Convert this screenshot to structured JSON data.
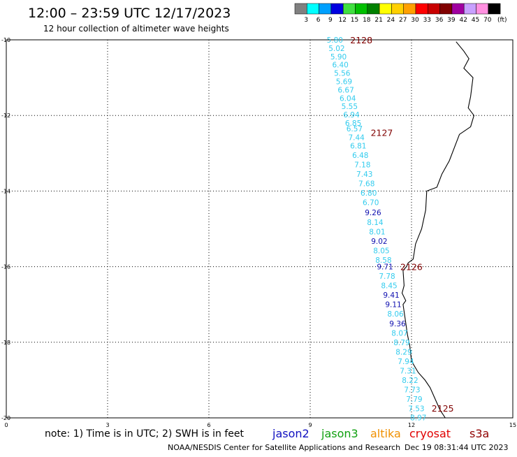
{
  "header": {
    "title": "12:00 – 23:59 UTC 12/17/2023",
    "subtitle": "12 hour collection of altimeter wave heights"
  },
  "colorbar": {
    "unit": "(ft)",
    "bins": [
      {
        "color": "#808080",
        "label": "3"
      },
      {
        "color": "#00ffff",
        "label": "6"
      },
      {
        "color": "#00a0ff",
        "label": "9"
      },
      {
        "color": "#0000e0",
        "label": "12"
      },
      {
        "color": "#40e040",
        "label": "15"
      },
      {
        "color": "#00c000",
        "label": "18"
      },
      {
        "color": "#008000",
        "label": "21"
      },
      {
        "color": "#ffff00",
        "label": "24"
      },
      {
        "color": "#ffd000",
        "label": "27"
      },
      {
        "color": "#ffa000",
        "label": "30"
      },
      {
        "color": "#ff0000",
        "label": "33"
      },
      {
        "color": "#c80000",
        "label": "36"
      },
      {
        "color": "#800000",
        "label": "39"
      },
      {
        "color": "#a000a0",
        "label": "42"
      },
      {
        "color": "#c8a0ff",
        "label": "45"
      },
      {
        "color": "#ff90e0",
        "label": "70"
      },
      {
        "color": "#000000",
        "label": ""
      }
    ]
  },
  "map": {
    "lon_ticks": [
      "0",
      "3",
      "6",
      "9",
      "12",
      "15"
    ],
    "lat_ticks": [
      "-10",
      "-12",
      "-14",
      "-16",
      "-18",
      "-20"
    ]
  },
  "track": {
    "value_colors": {
      "light": "#33ccee",
      "dark": "#1010b0"
    },
    "label_color": "#800000",
    "points": [
      {
        "lat": -10.0,
        "val": "5.80",
        "dark": false
      },
      {
        "lat": -10.22,
        "val": "5.02",
        "dark": false
      },
      {
        "lat": -10.44,
        "val": "5.90",
        "dark": false
      },
      {
        "lat": -10.66,
        "val": "6.40",
        "dark": false
      },
      {
        "lat": -10.88,
        "val": "5.56",
        "dark": false
      },
      {
        "lat": -11.1,
        "val": "5.69",
        "dark": false
      },
      {
        "lat": -11.32,
        "val": "6.67",
        "dark": false
      },
      {
        "lat": -11.54,
        "val": "6.04",
        "dark": false
      },
      {
        "lat": -11.76,
        "val": "5.55",
        "dark": false
      },
      {
        "lat": -11.98,
        "val": "6.94",
        "dark": false
      },
      {
        "lat": -12.2,
        "val": "6.85",
        "dark": false
      },
      {
        "lat": -12.35,
        "val": "6.57",
        "dark": false
      },
      {
        "lat": -12.58,
        "val": "7.44",
        "dark": false
      },
      {
        "lat": -12.8,
        "val": "6.81",
        "dark": false
      },
      {
        "lat": -13.05,
        "val": "6.48",
        "dark": false
      },
      {
        "lat": -13.3,
        "val": "7.18",
        "dark": false
      },
      {
        "lat": -13.55,
        "val": "7.43",
        "dark": false
      },
      {
        "lat": -13.8,
        "val": "7.68",
        "dark": false
      },
      {
        "lat": -14.05,
        "val": "6.80",
        "dark": false
      },
      {
        "lat": -14.3,
        "val": "6.70",
        "dark": false
      },
      {
        "lat": -14.57,
        "val": "9.26",
        "dark": true
      },
      {
        "lat": -14.82,
        "val": "8.14",
        "dark": false
      },
      {
        "lat": -15.07,
        "val": "8.01",
        "dark": false
      },
      {
        "lat": -15.32,
        "val": "9.02",
        "dark": true
      },
      {
        "lat": -15.57,
        "val": "8.05",
        "dark": false
      },
      {
        "lat": -15.82,
        "val": "8.58",
        "dark": false
      },
      {
        "lat": -16.0,
        "val": "9.71",
        "dark": true
      },
      {
        "lat": -16.25,
        "val": "7.78",
        "dark": false
      },
      {
        "lat": -16.5,
        "val": "8.45",
        "dark": false
      },
      {
        "lat": -16.75,
        "val": "9.41",
        "dark": true
      },
      {
        "lat": -17.0,
        "val": "9.11",
        "dark": true
      },
      {
        "lat": -17.25,
        "val": "8.06",
        "dark": false
      },
      {
        "lat": -17.5,
        "val": "9.36",
        "dark": true
      },
      {
        "lat": -17.75,
        "val": "8.07",
        "dark": false
      },
      {
        "lat": -18.0,
        "val": "8.79",
        "dark": false
      },
      {
        "lat": -18.25,
        "val": "8.29",
        "dark": false
      },
      {
        "lat": -18.5,
        "val": "7.94",
        "dark": false
      },
      {
        "lat": -18.75,
        "val": "7.31",
        "dark": false
      },
      {
        "lat": -19.0,
        "val": "8.22",
        "dark": false
      },
      {
        "lat": -19.25,
        "val": "7.73",
        "dark": false
      },
      {
        "lat": -19.5,
        "val": "7.79",
        "dark": false
      },
      {
        "lat": -19.75,
        "val": "7.53",
        "dark": false
      },
      {
        "lat": -19.99,
        "val": "8.97",
        "dark": false
      }
    ],
    "time_labels": [
      {
        "lat": -10.0,
        "text": "2128"
      },
      {
        "lat": -12.45,
        "text": "2127"
      },
      {
        "lat": -16.0,
        "text": "2126"
      },
      {
        "lat": -19.74,
        "text": "2125"
      }
    ]
  },
  "coast": [
    [
      13.32,
      -10.05
    ],
    [
      13.55,
      -10.3
    ],
    [
      13.7,
      -10.5
    ],
    [
      13.55,
      -10.75
    ],
    [
      13.82,
      -11.0
    ],
    [
      13.75,
      -11.5
    ],
    [
      13.68,
      -11.8
    ],
    [
      13.85,
      -12.0
    ],
    [
      13.75,
      -12.3
    ],
    [
      13.42,
      -12.5
    ],
    [
      13.12,
      -13.2
    ],
    [
      12.9,
      -13.55
    ],
    [
      12.75,
      -13.9
    ],
    [
      12.45,
      -14.0
    ],
    [
      12.42,
      -14.5
    ],
    [
      12.3,
      -15.0
    ],
    [
      12.12,
      -15.4
    ],
    [
      12.05,
      -15.8
    ],
    [
      11.9,
      -15.9
    ],
    [
      11.85,
      -16.0
    ],
    [
      11.75,
      -16.1
    ],
    [
      11.78,
      -16.5
    ],
    [
      11.72,
      -16.7
    ],
    [
      11.83,
      -16.9
    ],
    [
      11.75,
      -17.0
    ],
    [
      11.8,
      -17.3
    ],
    [
      11.88,
      -17.8
    ],
    [
      11.95,
      -18.1
    ],
    [
      12.0,
      -18.5
    ],
    [
      12.2,
      -18.8
    ],
    [
      12.4,
      -19.0
    ],
    [
      12.55,
      -19.2
    ],
    [
      12.7,
      -19.5
    ],
    [
      12.85,
      -19.8
    ],
    [
      13.0,
      -20.0
    ]
  ],
  "footer": {
    "note": "note: 1) Time is in UTC; 2) SWH is in feet",
    "credit": "NOAA/NESDIS Center for Satellite Applications and Research",
    "timestamp": "Dec 19 08:31:44 UTC 2023",
    "legend": [
      {
        "name": "jason2",
        "color": "#1010c0"
      },
      {
        "name": "jason3",
        "color": "#10a010"
      },
      {
        "name": "altika",
        "color": "#f09000"
      },
      {
        "name": "cryosat",
        "color": "#e00000"
      },
      {
        "name": "s3a",
        "color": "#900000"
      }
    ]
  }
}
